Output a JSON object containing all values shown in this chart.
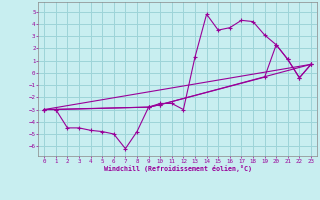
{
  "xlabel": "Windchill (Refroidissement éolien,°C)",
  "bg_color": "#c8eef0",
  "line_color": "#990099",
  "grid_color": "#9dd4d8",
  "xlim": [
    -0.5,
    23.5
  ],
  "ylim": [
    -6.8,
    5.8
  ],
  "yticks": [
    -6,
    -5,
    -4,
    -3,
    -2,
    -1,
    0,
    1,
    2,
    3,
    4,
    5
  ],
  "xticks": [
    0,
    1,
    2,
    3,
    4,
    5,
    6,
    7,
    8,
    9,
    10,
    11,
    12,
    13,
    14,
    15,
    16,
    17,
    18,
    19,
    20,
    21,
    22,
    23
  ],
  "series1_x": [
    0,
    1,
    2,
    3,
    4,
    5,
    6,
    7,
    8,
    9,
    10,
    11,
    12,
    13,
    14,
    15,
    16,
    17,
    18,
    19,
    20,
    21,
    22,
    23
  ],
  "series1_y": [
    -3,
    -3,
    -4.5,
    -4.5,
    -4.7,
    -4.8,
    -5,
    -6.2,
    -4.8,
    -2.8,
    -2.5,
    -2.5,
    -3,
    1.3,
    4.8,
    3.5,
    3.7,
    4.3,
    4.2,
    3.1,
    2.3,
    1.1,
    -0.4,
    0.7
  ],
  "series2_x": [
    0,
    1,
    9,
    10,
    23
  ],
  "series2_y": [
    -3,
    -3,
    -2.8,
    -2.6,
    0.7
  ],
  "series3_x": [
    0,
    9,
    10,
    19,
    20,
    21,
    22,
    23
  ],
  "series3_y": [
    -3,
    -2.8,
    -2.6,
    -0.35,
    2.3,
    1.1,
    -0.4,
    0.7
  ],
  "series4_x": [
    0,
    23
  ],
  "series4_y": [
    -3,
    0.7
  ]
}
